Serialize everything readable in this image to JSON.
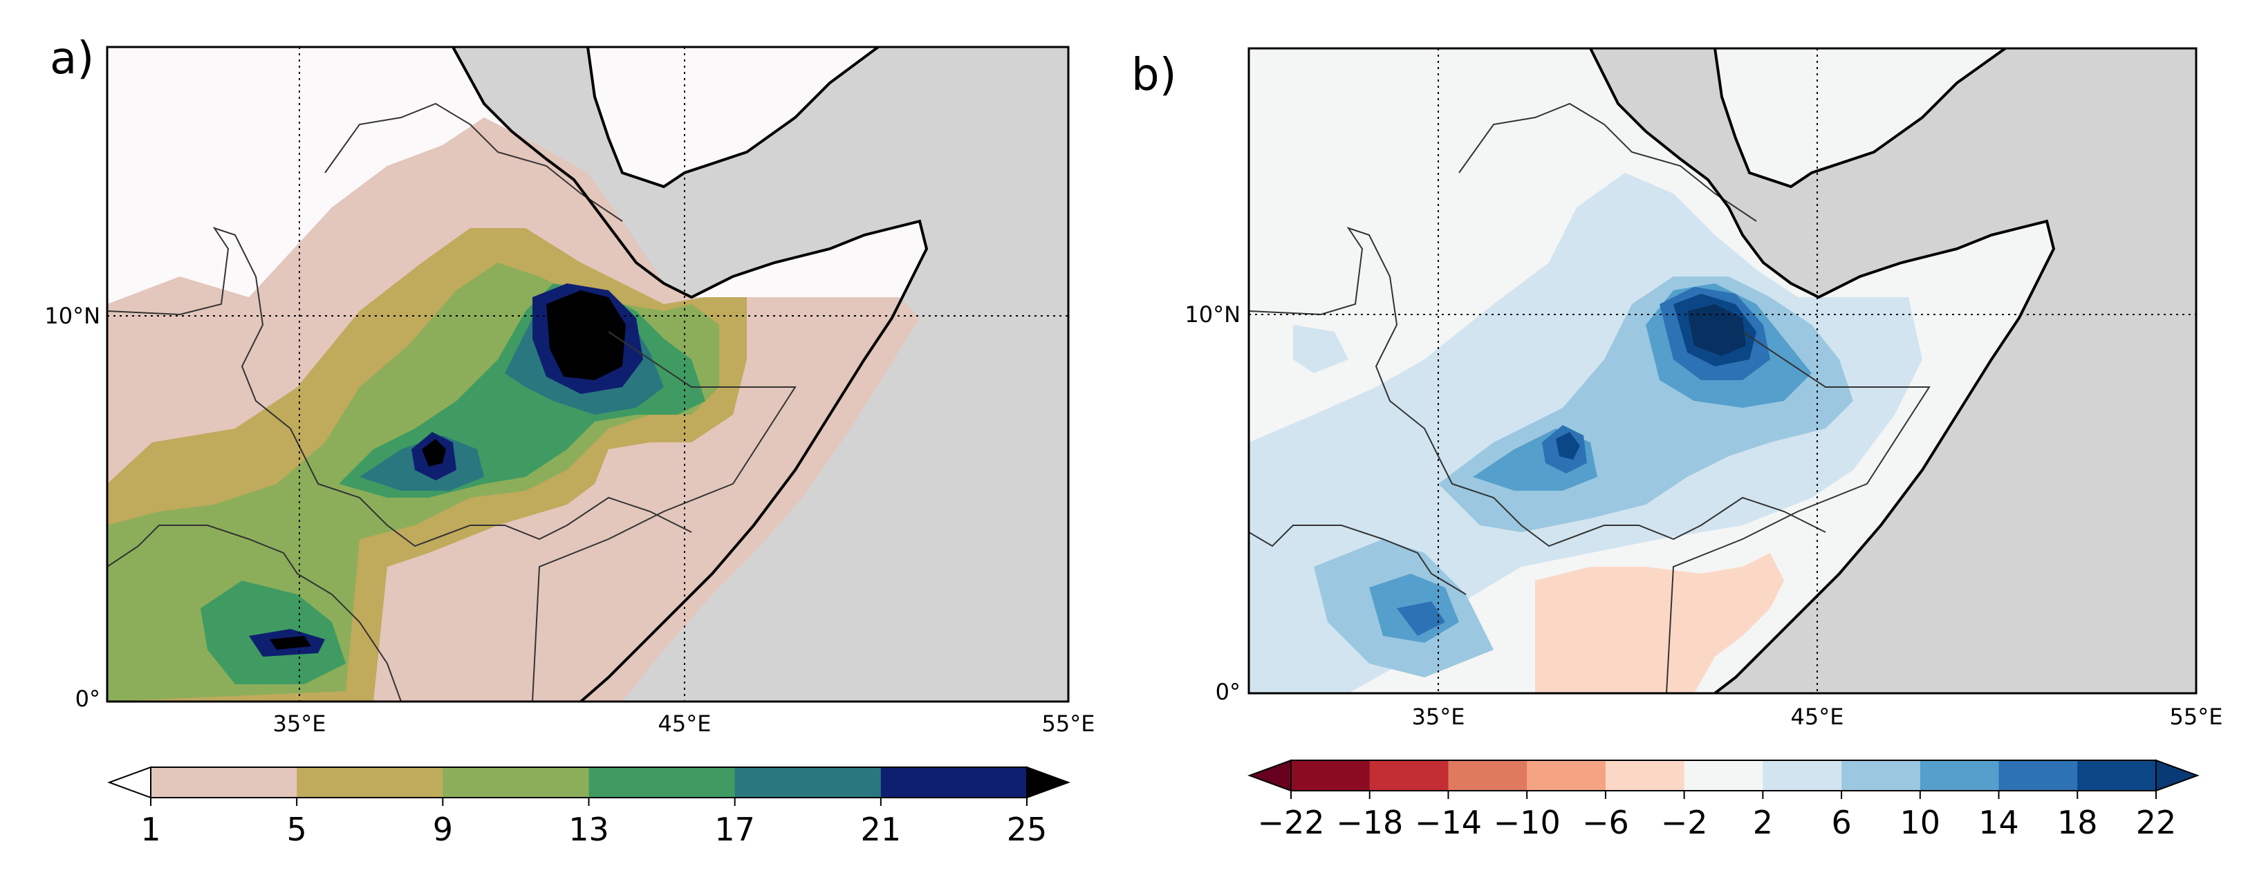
{
  "colors": {
    "land_bg": "#d3d3d3",
    "coast": "#000000",
    "border": "#333333",
    "grid": "#000000"
  },
  "panels": [
    {
      "label": "a)",
      "lat_ticks": [
        "10°N",
        "0°"
      ],
      "lon_ticks": [
        "35°E",
        "45°E",
        "55°E"
      ],
      "colorbar": {
        "ticks": [
          "1",
          "5",
          "9",
          "13",
          "17",
          "21",
          "25"
        ],
        "under_color": "#ffffff",
        "over_color": "#000000",
        "colors": [
          "#e3c6bc",
          "#c0aa5c",
          "#8cae5a",
          "#3f9b62",
          "#2a7780",
          "#0f1f70"
        ]
      },
      "shading": {
        "background": "#fcf9fa",
        "levels": [
          "#e3c6bc",
          "#c0aa5c",
          "#8cae5a",
          "#3f9b62",
          "#2a7780",
          "#0f1f70",
          "#000000"
        ]
      }
    },
    {
      "label": "b)",
      "lat_ticks": [
        "10°N",
        "0°"
      ],
      "lon_ticks": [
        "35°E",
        "45°E",
        "55°E"
      ],
      "colorbar": {
        "ticks": [
          "−22",
          "−18",
          "−14",
          "−10",
          "−6",
          "−2",
          "2",
          "6",
          "10",
          "14",
          "18",
          "22"
        ],
        "under_color": "#67001f",
        "over_color": "#083a75",
        "colors": [
          "#8b0c22",
          "#c22e34",
          "#e07a5f",
          "#f4a482",
          "#fbd8c6",
          "#f4f5f5",
          "#d2e4f0",
          "#9bc8e0",
          "#559fcd",
          "#2c72b4",
          "#0b4787"
        ]
      },
      "shading": {
        "background": "#f4f5f5",
        "levels": [
          "#d2e4f0",
          "#9bc8e0",
          "#559fcd",
          "#2c72b4",
          "#0b4787",
          "#083060"
        ],
        "negative": "#fbd8c6"
      }
    }
  ]
}
